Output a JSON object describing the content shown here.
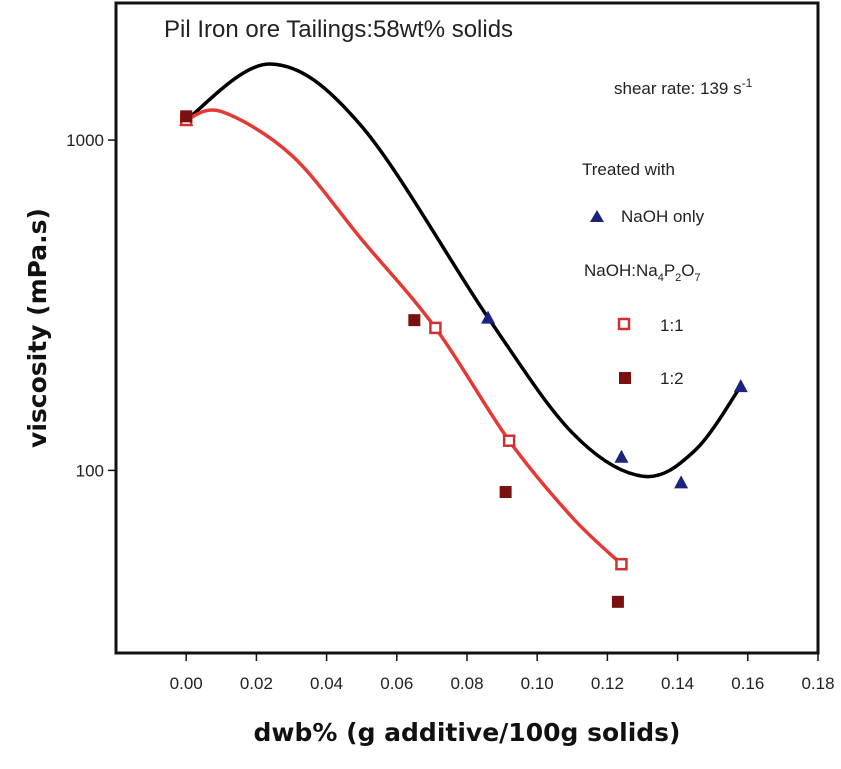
{
  "chart_data": {
    "type": "scatter",
    "title": "Pil Iron ore Tailings:58wt% solids",
    "xlabel": "dwb% (g additive/100g solids)",
    "ylabel": "viscosity (mPa.s)",
    "xlim": [
      -0.02,
      0.18
    ],
    "ylim": [
      28,
      2600
    ],
    "y_scale": "log",
    "x_ticks": [
      "0.00",
      "0.02",
      "0.04",
      "0.06",
      "0.08",
      "0.10",
      "0.12",
      "0.14",
      "0.16",
      "0.18"
    ],
    "y_ticks": [
      "100",
      "1000"
    ],
    "annotation": {
      "prefix": "shear rate: 139 s",
      "sup": "-1"
    },
    "legend": {
      "heading": "Treated with",
      "naoh_label": "NaOH only",
      "group_label": {
        "a": "NaOH:Na",
        "b": "4",
        "c": "P",
        "d": "2",
        "e": "O",
        "f": "7"
      },
      "ratio_1_1": "1:1",
      "ratio_1_2": "1:2",
      "placement": "right"
    },
    "series": [
      {
        "key": "naoh",
        "marker": "triangle",
        "color": "#1a237e",
        "points": [
          [
            0.0,
            1150
          ],
          [
            0.086,
            290
          ],
          [
            0.124,
            110
          ],
          [
            0.141,
            92
          ],
          [
            0.158,
            180
          ]
        ]
      },
      {
        "key": "r11",
        "marker": "open-square",
        "color": "#d32f2f",
        "points": [
          [
            0.0,
            1150
          ],
          [
            0.071,
            270
          ],
          [
            0.092,
            123
          ],
          [
            0.124,
            52
          ]
        ]
      },
      {
        "key": "r12",
        "marker": "filled-square",
        "color": "#7b1010",
        "points": [
          [
            0.0,
            1180
          ],
          [
            0.065,
            285
          ],
          [
            0.091,
            86
          ],
          [
            0.123,
            40
          ]
        ]
      }
    ],
    "fits": [
      {
        "key": "naoh-fit",
        "color": "#000000",
        "points": [
          [
            0.0,
            1150
          ],
          [
            0.024,
            1700
          ],
          [
            0.05,
            1100
          ],
          [
            0.086,
            290
          ],
          [
            0.11,
            130
          ],
          [
            0.13,
            96
          ],
          [
            0.145,
            115
          ],
          [
            0.158,
            180
          ]
        ]
      },
      {
        "key": "r11-fit",
        "color": "#e53935",
        "points": [
          [
            0.0,
            1150
          ],
          [
            0.01,
            1220
          ],
          [
            0.03,
            900
          ],
          [
            0.05,
            500
          ],
          [
            0.071,
            270
          ],
          [
            0.092,
            123
          ],
          [
            0.11,
            72
          ],
          [
            0.124,
            52
          ]
        ]
      }
    ]
  },
  "colors": {
    "axis": "#111111",
    "naoh": "#1a237e",
    "r11": "#d32f2f",
    "r12": "#7b1010"
  }
}
